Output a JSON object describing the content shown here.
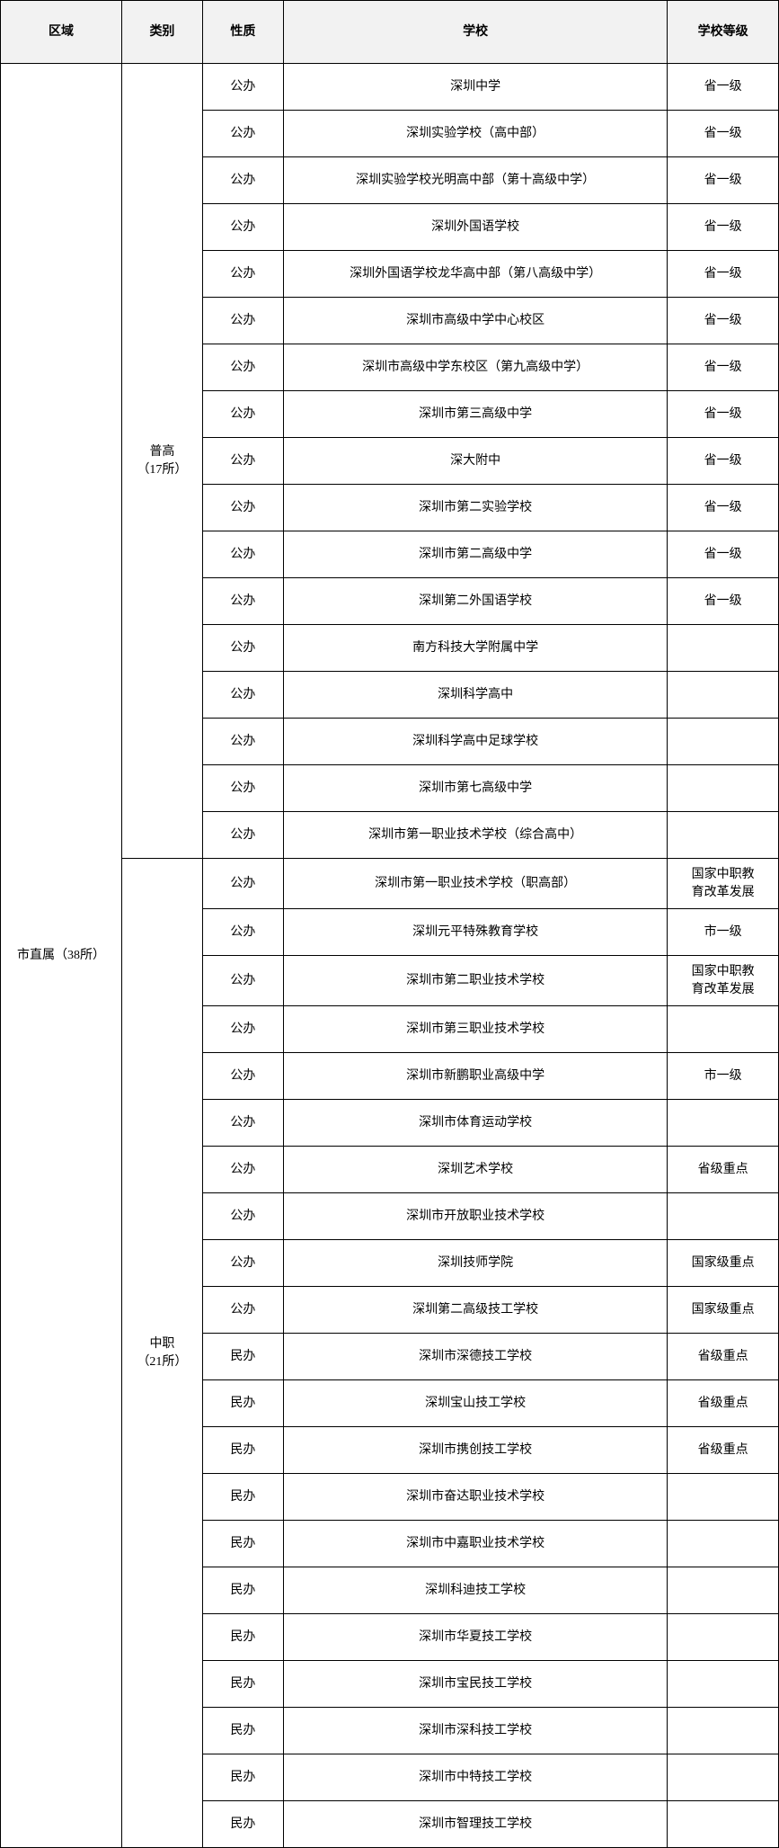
{
  "headers": {
    "region": "区域",
    "category": "类别",
    "nature": "性质",
    "school": "学校",
    "level": "学校等级"
  },
  "region_label": "市直属（38所）",
  "category1_label": "普高\n（17所）",
  "category2_label": "中职\n（21所）",
  "groups": [
    {
      "count": 17,
      "rows": [
        {
          "nature": "公办",
          "school": "深圳中学",
          "level": "省一级"
        },
        {
          "nature": "公办",
          "school": "深圳实验学校（高中部）",
          "level": "省一级"
        },
        {
          "nature": "公办",
          "school": "深圳实验学校光明高中部（第十高级中学）",
          "level": "省一级"
        },
        {
          "nature": "公办",
          "school": "深圳外国语学校",
          "level": "省一级"
        },
        {
          "nature": "公办",
          "school": "深圳外国语学校龙华高中部（第八高级中学）",
          "level": "省一级"
        },
        {
          "nature": "公办",
          "school": "深圳市高级中学中心校区",
          "level": "省一级"
        },
        {
          "nature": "公办",
          "school": "深圳市高级中学东校区（第九高级中学）",
          "level": "省一级"
        },
        {
          "nature": "公办",
          "school": "深圳市第三高级中学",
          "level": "省一级"
        },
        {
          "nature": "公办",
          "school": "深大附中",
          "level": "省一级"
        },
        {
          "nature": "公办",
          "school": "深圳市第二实验学校",
          "level": "省一级"
        },
        {
          "nature": "公办",
          "school": "深圳市第二高级中学",
          "level": "省一级"
        },
        {
          "nature": "公办",
          "school": "深圳第二外国语学校",
          "level": "省一级"
        },
        {
          "nature": "公办",
          "school": "南方科技大学附属中学",
          "level": ""
        },
        {
          "nature": "公办",
          "school": "深圳科学高中",
          "level": ""
        },
        {
          "nature": "公办",
          "school": "深圳科学高中足球学校",
          "level": ""
        },
        {
          "nature": "公办",
          "school": "深圳市第七高级中学",
          "level": ""
        },
        {
          "nature": "公办",
          "school": "深圳市第一职业技术学校（综合高中）",
          "level": ""
        }
      ]
    },
    {
      "count": 21,
      "rows": [
        {
          "nature": "公办",
          "school": "深圳市第一职业技术学校（职高部）",
          "level": "国家中职教育改革发展"
        },
        {
          "nature": "公办",
          "school": "深圳元平特殊教育学校",
          "level": "市一级"
        },
        {
          "nature": "公办",
          "school": "深圳市第二职业技术学校",
          "level": "国家中职教育改革发展"
        },
        {
          "nature": "公办",
          "school": "深圳市第三职业技术学校",
          "level": ""
        },
        {
          "nature": "公办",
          "school": "深圳市新鹏职业高级中学",
          "level": "市一级"
        },
        {
          "nature": "公办",
          "school": "深圳市体育运动学校",
          "level": ""
        },
        {
          "nature": "公办",
          "school": "深圳艺术学校",
          "level": "省级重点"
        },
        {
          "nature": "公办",
          "school": "深圳市开放职业技术学校",
          "level": ""
        },
        {
          "nature": "公办",
          "school": "深圳技师学院",
          "level": "国家级重点"
        },
        {
          "nature": "公办",
          "school": "深圳第二高级技工学校",
          "level": "国家级重点"
        },
        {
          "nature": "民办",
          "school": "深圳市深德技工学校",
          "level": "省级重点"
        },
        {
          "nature": "民办",
          "school": "深圳宝山技工学校",
          "level": "省级重点"
        },
        {
          "nature": "民办",
          "school": "深圳市携创技工学校",
          "level": "省级重点"
        },
        {
          "nature": "民办",
          "school": "深圳市奋达职业技术学校",
          "level": ""
        },
        {
          "nature": "民办",
          "school": "深圳市中嘉职业技术学校",
          "level": ""
        },
        {
          "nature": "民办",
          "school": "深圳科迪技工学校",
          "level": ""
        },
        {
          "nature": "民办",
          "school": "深圳市华夏技工学校",
          "level": ""
        },
        {
          "nature": "民办",
          "school": "深圳市宝民技工学校",
          "level": ""
        },
        {
          "nature": "民办",
          "school": "深圳市深科技工学校",
          "level": ""
        },
        {
          "nature": "民办",
          "school": "深圳市中特技工学校",
          "level": ""
        },
        {
          "nature": "民办",
          "school": "深圳市智理技工学校",
          "level": ""
        }
      ]
    }
  ]
}
